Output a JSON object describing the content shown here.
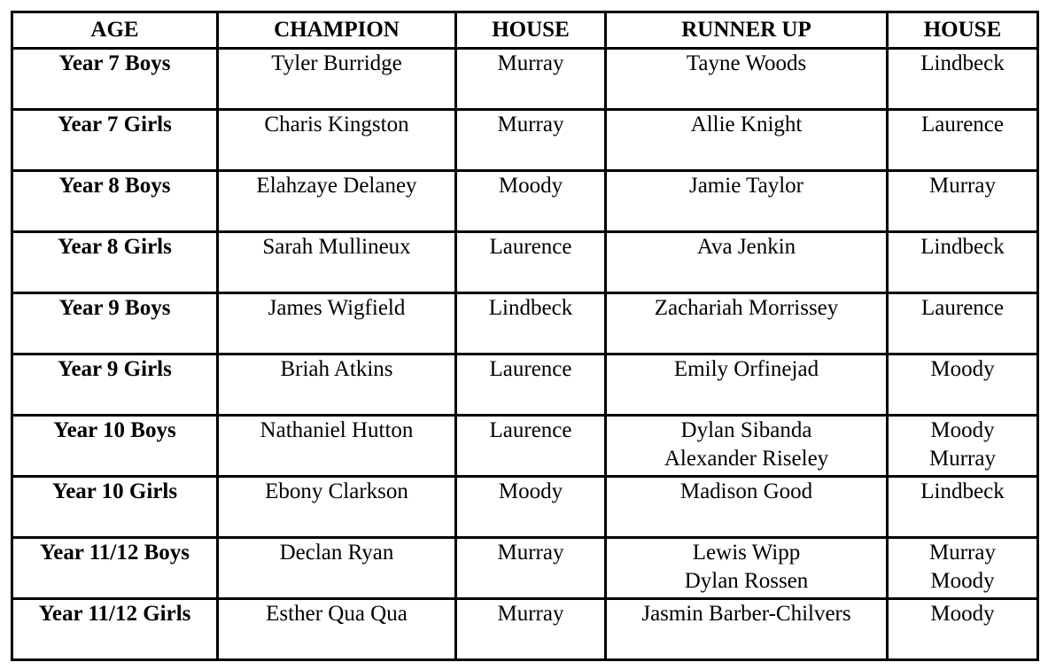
{
  "headers": [
    "AGE",
    "CHAMPION",
    "HOUSE",
    "RUNNER UP",
    "HOUSE"
  ],
  "rows": [
    {
      "age": "Year 7 Boys",
      "champion": "Tyler Burridge",
      "house": "Murray",
      "runner_up": [
        "Tayne Woods"
      ],
      "runner_up_house": [
        "Lindbeck"
      ]
    },
    {
      "age": "Year 7 Girls",
      "champion": "Charis Kingston",
      "house": "Murray",
      "runner_up": [
        "Allie Knight"
      ],
      "runner_up_house": [
        "Laurence"
      ]
    },
    {
      "age": "Year 8 Boys",
      "champion": "Elahzaye Delaney",
      "house": "Moody",
      "runner_up": [
        "Jamie Taylor"
      ],
      "runner_up_house": [
        "Murray"
      ]
    },
    {
      "age": "Year 8 Girls",
      "champion": "Sarah Mullineux",
      "house": "Laurence",
      "runner_up": [
        "Ava Jenkin"
      ],
      "runner_up_house": [
        "Lindbeck"
      ]
    },
    {
      "age": "Year 9 Boys",
      "champion": "James Wigfield",
      "house": "Lindbeck",
      "runner_up": [
        "Zachariah Morrissey"
      ],
      "runner_up_house": [
        "Laurence"
      ]
    },
    {
      "age": "Year 9 Girls",
      "champion": "Briah Atkins",
      "house": "Laurence",
      "runner_up": [
        "Emily Orfinejad"
      ],
      "runner_up_house": [
        "Moody"
      ]
    },
    {
      "age": "Year 10 Boys",
      "champion": "Nathaniel Hutton",
      "house": "Laurence",
      "runner_up": [
        "Dylan Sibanda",
        "Alexander Riseley"
      ],
      "runner_up_house": [
        "Moody",
        "Murray"
      ]
    },
    {
      "age": "Year 10 Girls",
      "champion": "Ebony Clarkson",
      "house": "Moody",
      "runner_up": [
        "Madison Good"
      ],
      "runner_up_house": [
        "Lindbeck"
      ]
    },
    {
      "age": "Year 11/12 Boys",
      "champion": "Declan Ryan",
      "house": "Murray",
      "runner_up": [
        "Lewis Wipp",
        "Dylan Rossen"
      ],
      "runner_up_house": [
        "Murray",
        "Moody"
      ]
    },
    {
      "age": "Year 11/12 Girls",
      "champion": "Esther Qua Qua",
      "house": "Murray",
      "runner_up": [
        "Jasmin Barber-Chilvers"
      ],
      "runner_up_house": [
        "Moody"
      ]
    }
  ]
}
